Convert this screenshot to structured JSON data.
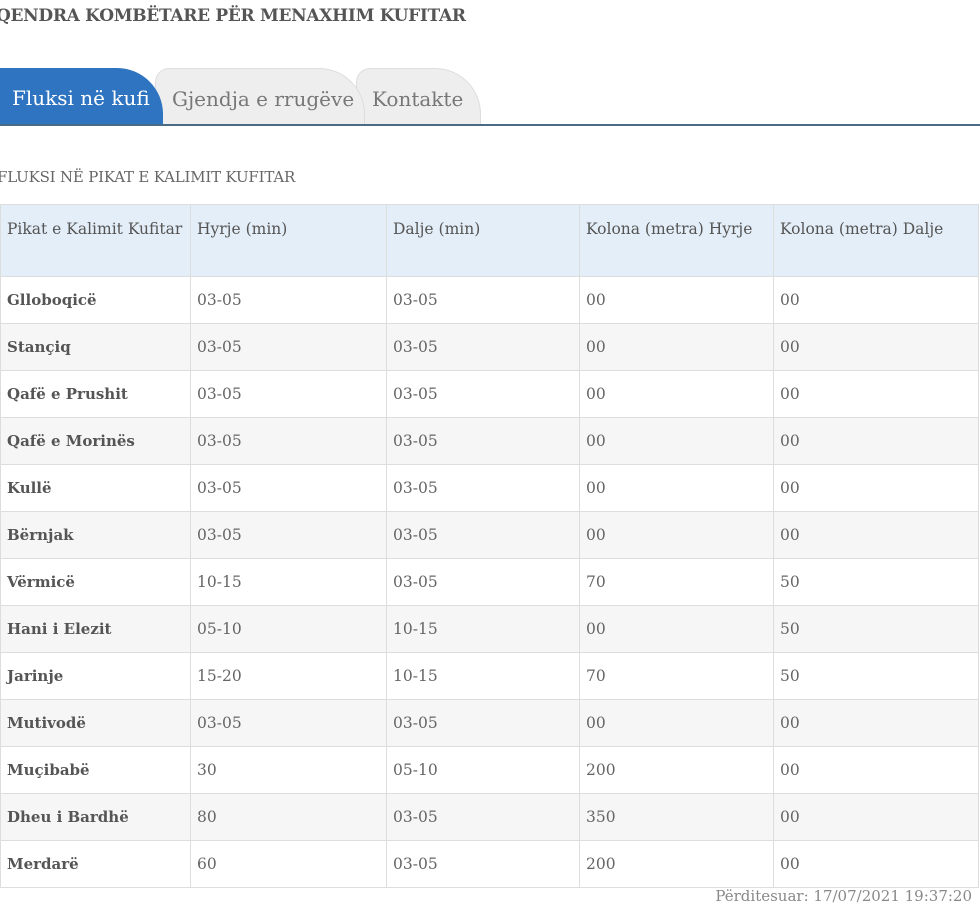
{
  "site_title": "QENDRA KOMBËTARE PËR MENAXHIM KUFITAR",
  "tabs": [
    {
      "label": "Fluksi në kufi",
      "active": true
    },
    {
      "label": "Gjendja e rrugëve",
      "active": false
    },
    {
      "label": "Kontakte",
      "active": false
    }
  ],
  "section_title": "FLUKSI NË PIKAT E KALIMIT KUFITAR",
  "table": {
    "headers": [
      "Pikat e Kalimit Kufitar",
      "Hyrje (min)",
      "Dalje (min)",
      "Kolona (metra) Hyrje",
      "Kolona (metra) Dalje"
    ],
    "rows": [
      [
        "Glloboqicë",
        "03-05",
        "03-05",
        "00",
        "00"
      ],
      [
        "Stançiq",
        "03-05",
        "03-05",
        "00",
        "00"
      ],
      [
        "Qafë e Prushit",
        "03-05",
        "03-05",
        "00",
        "00"
      ],
      [
        "Qafë e Morinës",
        "03-05",
        "03-05",
        "00",
        "00"
      ],
      [
        "Kullë",
        "03-05",
        "03-05",
        "00",
        "00"
      ],
      [
        "Bërnjak",
        "03-05",
        "03-05",
        "00",
        "00"
      ],
      [
        "Vërmicë",
        "10-15",
        "03-05",
        "70",
        "50"
      ],
      [
        "Hani i Elezit",
        "05-10",
        "10-15",
        "00",
        "50"
      ],
      [
        "Jarinje",
        "15-20",
        "10-15",
        "70",
        "50"
      ],
      [
        "Mutivodë",
        "03-05",
        "03-05",
        "00",
        "00"
      ],
      [
        "Muçibabë",
        "30",
        "05-10",
        "200",
        "00"
      ],
      [
        "Dheu i Bardhë",
        "80",
        "03-05",
        "350",
        "00"
      ],
      [
        "Merdarë",
        "60",
        "03-05",
        "200",
        "00"
      ]
    ]
  },
  "updated": "Përditesuar: 17/07/2021 19:37:20",
  "colors": {
    "accent": "#2f74c0",
    "header_bg": "#e4eef8",
    "tab_inactive": "#eeeeee"
  }
}
